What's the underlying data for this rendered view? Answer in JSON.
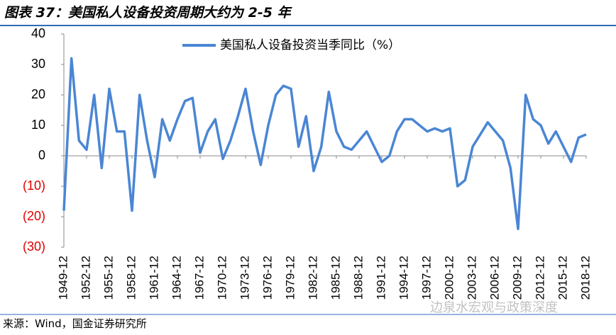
{
  "chart_data": {
    "type": "line",
    "title": "图表 37：美国私人设备投资周期大约为 2-5 年",
    "source": "来源：Wind，国金证券研究所",
    "watermark": "边泉水宏观与政策深度",
    "categories": [
      "1949-12",
      null,
      null,
      "1952-12",
      null,
      null,
      "1955-12",
      null,
      null,
      "1958-12",
      null,
      null,
      "1961-12",
      null,
      null,
      "1964-12",
      null,
      null,
      "1967-12",
      null,
      null,
      "1970-12",
      null,
      null,
      "1973-12",
      null,
      null,
      "1976-12",
      null,
      null,
      "1979-12",
      null,
      null,
      "1982-12",
      null,
      null,
      "1985-12",
      null,
      null,
      "1988-12",
      null,
      null,
      "1991-12",
      null,
      null,
      "1994-12",
      null,
      null,
      "1997-12",
      null,
      null,
      "2000-12",
      null,
      null,
      "2003-12",
      null,
      null,
      "2006-12",
      null,
      null,
      "2009-12",
      null,
      null,
      "2012-12",
      null,
      null,
      "2015-12",
      null,
      null,
      "2018-12"
    ],
    "series": [
      {
        "name": "美国私人设备投资当季同比（%）",
        "color": "#4a86d4",
        "values": [
          -18,
          32,
          5,
          2,
          20,
          -4,
          22,
          8,
          8,
          -18,
          20,
          5,
          -7,
          12,
          5,
          12,
          18,
          19,
          1,
          8,
          12,
          -1,
          5,
          13,
          22,
          8,
          -3,
          10,
          20,
          23,
          22,
          3,
          13,
          -5,
          3,
          21,
          8,
          3,
          2,
          5,
          8,
          3,
          -2,
          0,
          8,
          12,
          12,
          10,
          8,
          9,
          8,
          9,
          -10,
          -8,
          3,
          7,
          11,
          8,
          5,
          -4,
          -24,
          20,
          12,
          10,
          4,
          8,
          3,
          -2,
          6,
          7
        ]
      }
    ],
    "ylim": [
      -30,
      40
    ],
    "yticks": [
      40,
      30,
      20,
      10,
      0,
      {
        "value": -10,
        "label": "(10)"
      },
      {
        "value": -20,
        "label": "(20)"
      },
      {
        "value": -30,
        "label": "(30)"
      }
    ],
    "negative_tick_color": "#e00000",
    "legend": "top"
  }
}
